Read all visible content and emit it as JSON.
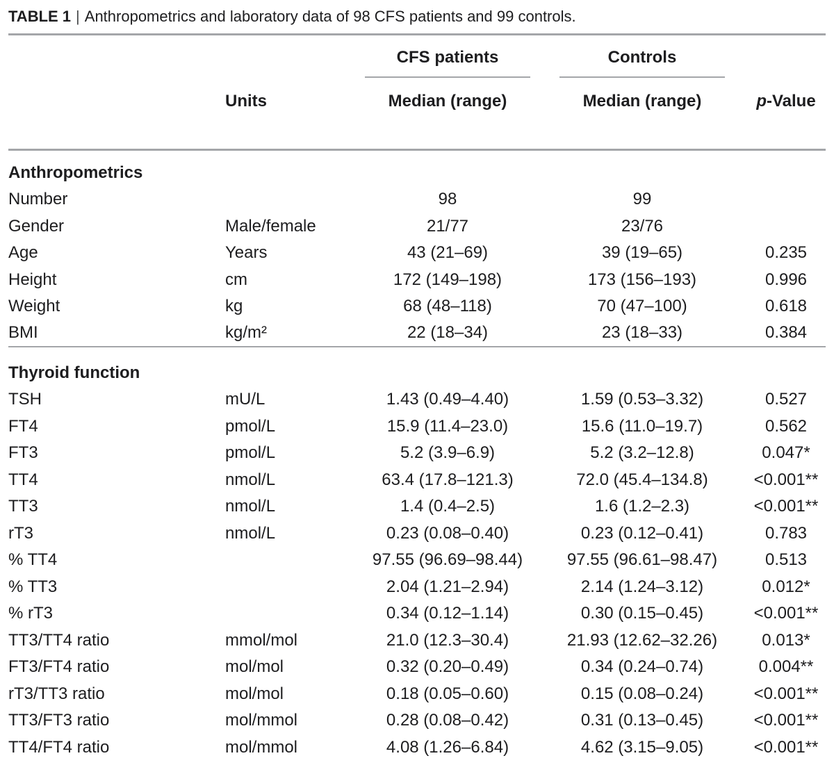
{
  "title": {
    "tag": "TABLE 1",
    "separator": "|",
    "caption": "Anthropometrics and laboratory data of 98 CFS patients and 99 controls."
  },
  "header": {
    "units_label": "Units",
    "group1": "CFS patients",
    "group2": "Controls",
    "median1": "Median (range)",
    "median2": "Median (range)",
    "pvalue_italic": "p",
    "pvalue_rest": "-Value"
  },
  "colors": {
    "text": "#1d1d1f",
    "rule": "#a4a6a9",
    "background": "#ffffff"
  },
  "table": {
    "sections": [
      {
        "header": "Anthropometrics",
        "rows": [
          {
            "label": "Number",
            "units": "",
            "cfs": "98",
            "controls": "99",
            "p": ""
          },
          {
            "label": "Gender",
            "units": "Male/female",
            "cfs": "21/77",
            "controls": "23/76",
            "p": ""
          },
          {
            "label": "Age",
            "units": "Years",
            "cfs": "43 (21–69)",
            "controls": "39 (19–65)",
            "p": "0.235"
          },
          {
            "label": "Height",
            "units": "cm",
            "cfs": "172 (149–198)",
            "controls": "173 (156–193)",
            "p": "0.996"
          },
          {
            "label": "Weight",
            "units": "kg",
            "cfs": "68 (48–118)",
            "controls": "70 (47–100)",
            "p": "0.618"
          },
          {
            "label": "BMI",
            "units": "kg/m²",
            "cfs": "22 (18–34)",
            "controls": "23 (18–33)",
            "p": "0.384"
          }
        ]
      },
      {
        "header": "Thyroid function",
        "rows": [
          {
            "label": "TSH",
            "units": "mU/L",
            "cfs": "1.43 (0.49–4.40)",
            "controls": "1.59 (0.53–3.32)",
            "p": "0.527"
          },
          {
            "label": "FT4",
            "units": "pmol/L",
            "cfs": "15.9 (11.4–23.0)",
            "controls": "15.6 (11.0–19.7)",
            "p": "0.562"
          },
          {
            "label": "FT3",
            "units": "pmol/L",
            "cfs": "5.2 (3.9–6.9)",
            "controls": "5.2 (3.2–12.8)",
            "p": "0.047*"
          },
          {
            "label": "TT4",
            "units": "nmol/L",
            "cfs": "63.4 (17.8–121.3)",
            "controls": "72.0 (45.4–134.8)",
            "p": "<0.001**"
          },
          {
            "label": "TT3",
            "units": "nmol/L",
            "cfs": "1.4 (0.4–2.5)",
            "controls": "1.6 (1.2–2.3)",
            "p": "<0.001**"
          },
          {
            "label": "rT3",
            "units": "nmol/L",
            "cfs": "0.23 (0.08–0.40)",
            "controls": "0.23 (0.12–0.41)",
            "p": "0.783"
          },
          {
            "label": "% TT4",
            "units": "",
            "cfs": "97.55 (96.69–98.44)",
            "controls": "97.55 (96.61–98.47)",
            "p": "0.513"
          },
          {
            "label": "% TT3",
            "units": "",
            "cfs": "2.04 (1.21–2.94)",
            "controls": "2.14 (1.24–3.12)",
            "p": "0.012*"
          },
          {
            "label": "% rT3",
            "units": "",
            "cfs": "0.34 (0.12–1.14)",
            "controls": "0.30 (0.15–0.45)",
            "p": "<0.001**"
          },
          {
            "label": "TT3/TT4 ratio",
            "units": "mmol/mol",
            "cfs": "21.0 (12.3–30.4)",
            "controls": "21.93 (12.62–32.26)",
            "p": "0.013*"
          },
          {
            "label": "FT3/FT4 ratio",
            "units": "mol/mol",
            "cfs": "0.32 (0.20–0.49)",
            "controls": "0.34 (0.24–0.74)",
            "p": "0.004**"
          },
          {
            "label": "rT3/TT3 ratio",
            "units": "mol/mol",
            "cfs": "0.18 (0.05–0.60)",
            "controls": "0.15 (0.08–0.24)",
            "p": "<0.001**"
          },
          {
            "label": "TT3/FT3 ratio",
            "units": "mol/mmol",
            "cfs": "0.28 (0.08–0.42)",
            "controls": "0.31 (0.13–0.45)",
            "p": "<0.001**"
          },
          {
            "label": "TT4/FT4 ratio",
            "units": "mol/mmol",
            "cfs": "4.08 (1.26–6.84)",
            "controls": "4.62 (3.15–9.05)",
            "p": "<0.001**"
          }
        ]
      }
    ]
  }
}
